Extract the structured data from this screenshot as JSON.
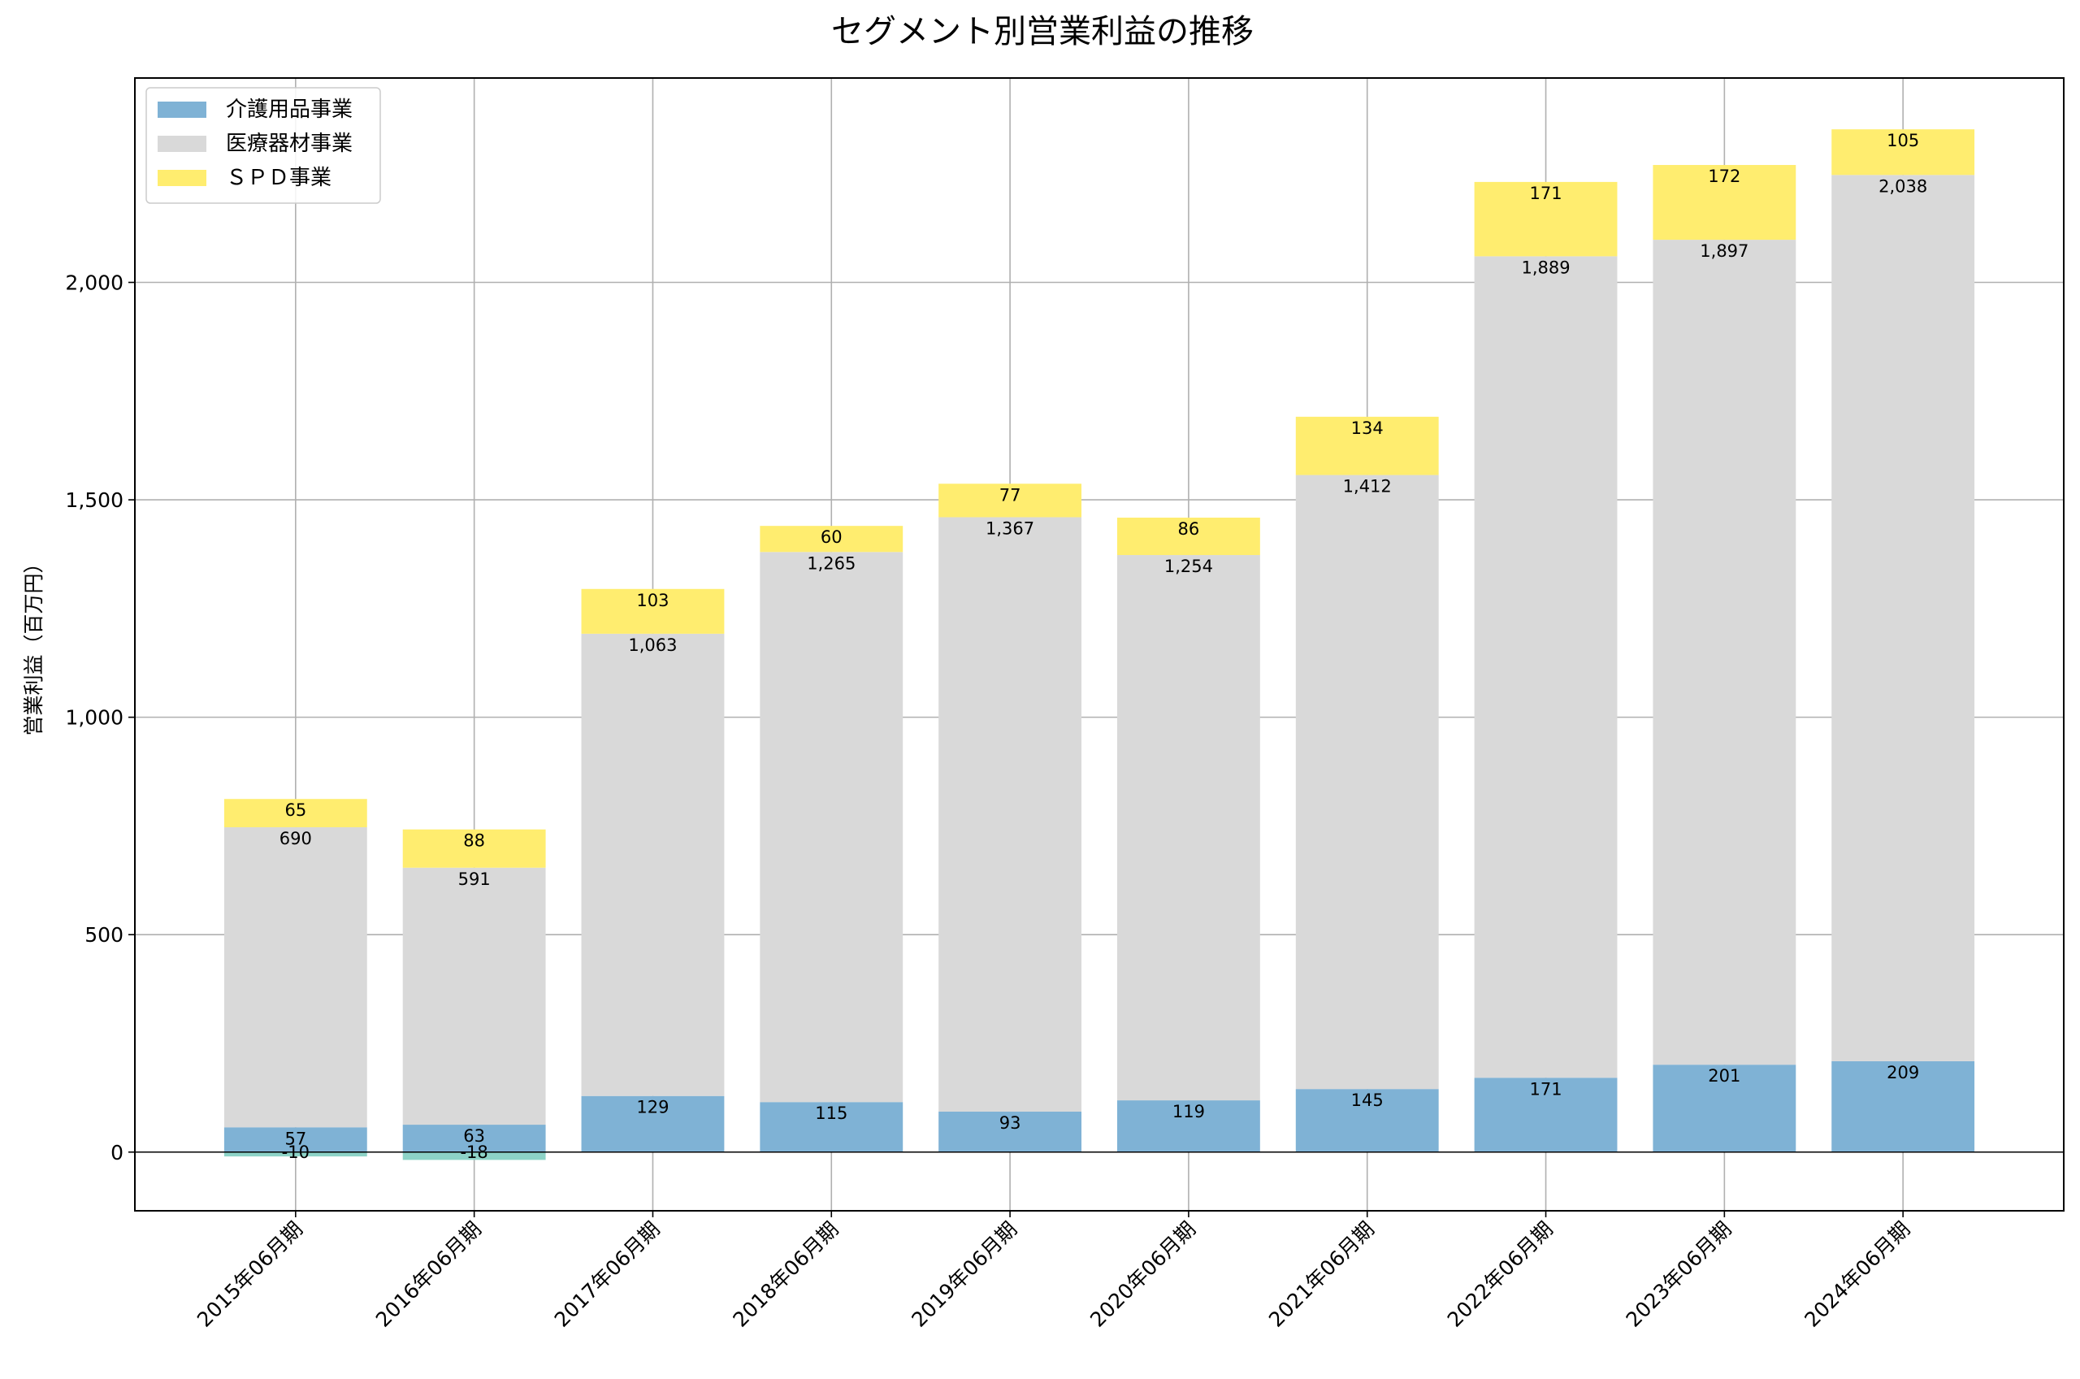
{
  "chart_data": {
    "type": "bar",
    "stacked": true,
    "title": "セグメント別営業利益の推移",
    "xlabel": "",
    "ylabel": "営業利益（百万円）",
    "ylim": [
      -135,
      2470
    ],
    "yticks": [
      0,
      500,
      1000,
      1500,
      2000
    ],
    "ytick_labels": [
      "0",
      "500",
      "1,000",
      "1,500",
      "2,000"
    ],
    "grid": true,
    "legend_position": "top-left",
    "categories": [
      "2015年06月期",
      "2016年06月期",
      "2017年06月期",
      "2018年06月期",
      "2019年06月期",
      "2020年06月期",
      "2021年06月期",
      "2022年06月期",
      "2023年06月期",
      "2024年06月期"
    ],
    "series": [
      {
        "name": "介護用品事業",
        "color": "#7fb2d5",
        "values": [
          57,
          63,
          129,
          115,
          93,
          119,
          145,
          171,
          201,
          209
        ],
        "labels": [
          "57",
          "63",
          "129",
          "115",
          "93",
          "119",
          "145",
          "171",
          "201",
          "209"
        ]
      },
      {
        "name": "医療器材事業",
        "color": "#d9d9d9",
        "values": [
          690,
          591,
          1063,
          1265,
          1367,
          1254,
          1412,
          1889,
          1897,
          2038
        ],
        "labels": [
          "690",
          "591",
          "1,063",
          "1,265",
          "1,367",
          "1,254",
          "1,412",
          "1,889",
          "1,897",
          "2,038"
        ]
      },
      {
        "name": "ＳＰＤ事業",
        "color": "#ffed6f",
        "values": [
          65,
          88,
          103,
          60,
          77,
          86,
          134,
          171,
          172,
          105
        ],
        "labels": [
          "65",
          "88",
          "103",
          "60",
          "77",
          "86",
          "134",
          "171",
          "172",
          "105"
        ]
      }
    ],
    "negative_series": {
      "color": "#8dd3c7",
      "values": [
        -10,
        -18,
        null,
        null,
        null,
        null,
        null,
        null,
        null,
        null
      ],
      "labels": [
        "-10",
        "-18",
        "",
        "",
        "",
        "",
        "",
        "",
        "",
        ""
      ]
    }
  }
}
